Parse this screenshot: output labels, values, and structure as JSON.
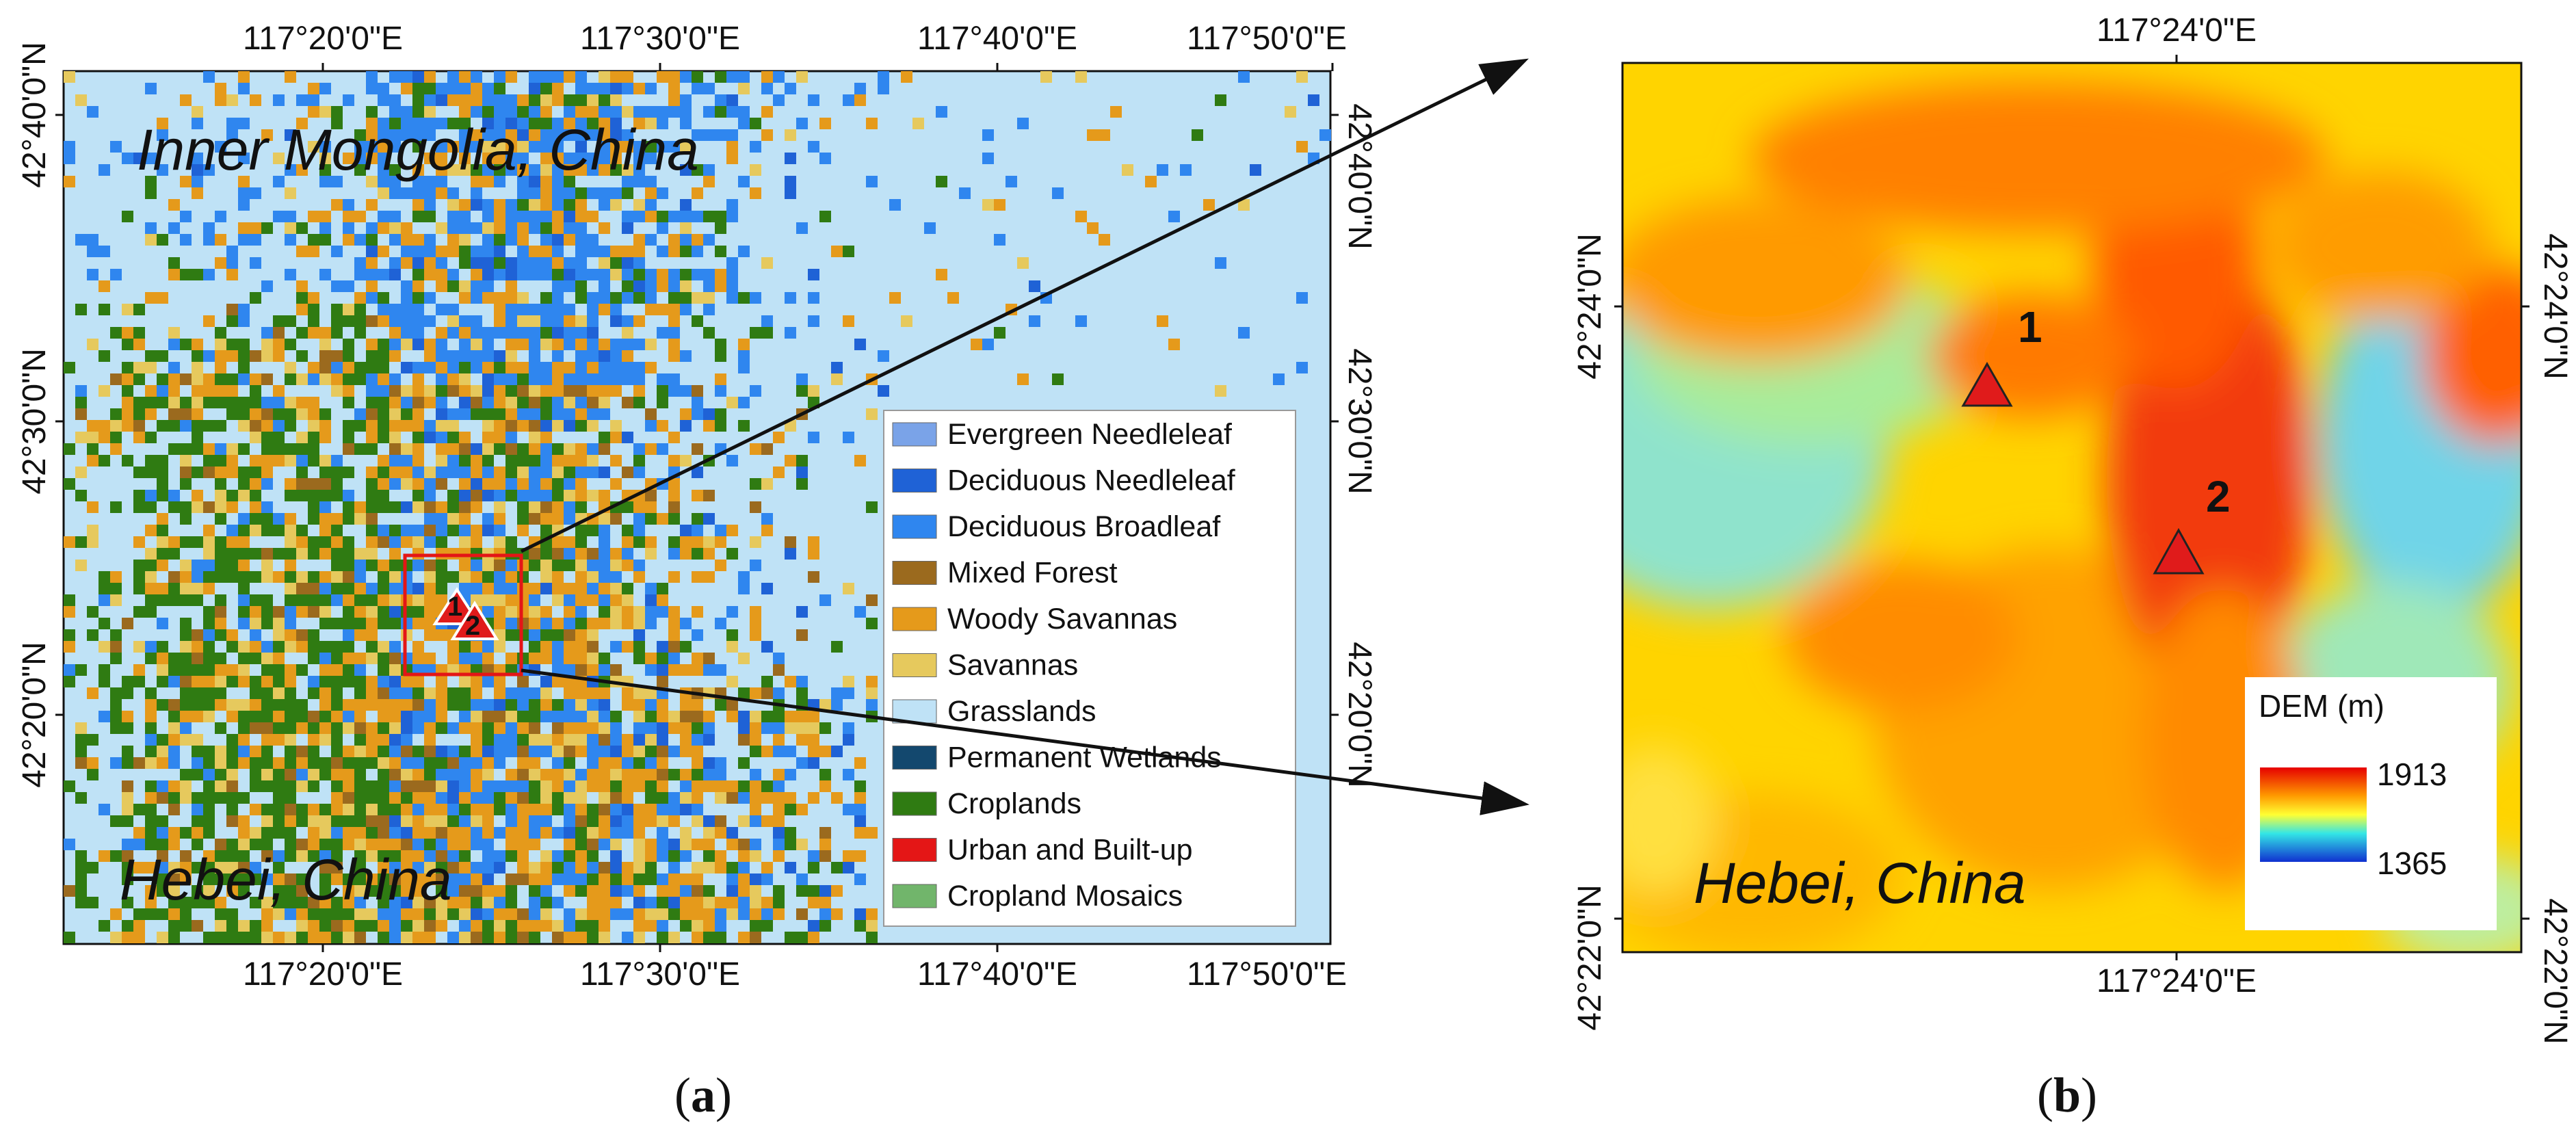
{
  "panel_a": {
    "label_open": "(",
    "label_letter": "a",
    "label_close": ")",
    "region_north": "Inner Mongolia, China",
    "region_south": "Hebei, China",
    "top_ticks": [
      "117°20'0\"E",
      "117°30'0\"E",
      "117°40'0\"E",
      "117°50'0\"E"
    ],
    "bottom_ticks": [
      "117°20'0\"E",
      "117°30'0\"E",
      "117°40'0\"E",
      "117°50'0\"E"
    ],
    "left_ticks": [
      "42°40'0\"N",
      "42°30'0\"N",
      "42°20'0\"N"
    ],
    "right_ticks": [
      "42°40'0\"N",
      "42°30'0\"N",
      "42°20'0\"N"
    ],
    "sites": [
      "1",
      "2"
    ],
    "legend": [
      {
        "label": "Evergreen Needleleaf",
        "color": "#7aa3e8"
      },
      {
        "label": "Deciduous Needleleaf",
        "color": "#1f62d6"
      },
      {
        "label": "Deciduous Broadleaf",
        "color": "#2f86ef"
      },
      {
        "label": "Mixed Forest",
        "color": "#9b6a1e"
      },
      {
        "label": "Woody Savannas",
        "color": "#e59a1b"
      },
      {
        "label": "Savannas",
        "color": "#e6c95d"
      },
      {
        "label": "Grasslands",
        "color": "#bfe2f6"
      },
      {
        "label": "Permanent Wetlands",
        "color": "#13486e"
      },
      {
        "label": "Croplands",
        "color": "#2f7b12"
      },
      {
        "label": "Urban and Built-up",
        "color": "#e41616"
      },
      {
        "label": "Cropland Mosaics",
        "color": "#71b56b"
      }
    ]
  },
  "panel_b": {
    "label_open": "(",
    "label_letter": "b",
    "label_close": ")",
    "region_south": "Hebei, China",
    "top_tick": "117°24'0\"E",
    "bottom_tick": "117°24'0\"E",
    "left_ticks": [
      "42°24'0\"N",
      "42°22'0\"N"
    ],
    "right_ticks": [
      "42°24'0\"N",
      "42°22'0\"N"
    ],
    "sites": [
      "1",
      "2"
    ],
    "dem_title": "DEM (m)",
    "dem_max": "1913",
    "dem_min": "1365"
  },
  "colors": {
    "background_a": "#bfe2f6",
    "marker_fill": "#e01b1b",
    "inset_box": "#e41616"
  }
}
